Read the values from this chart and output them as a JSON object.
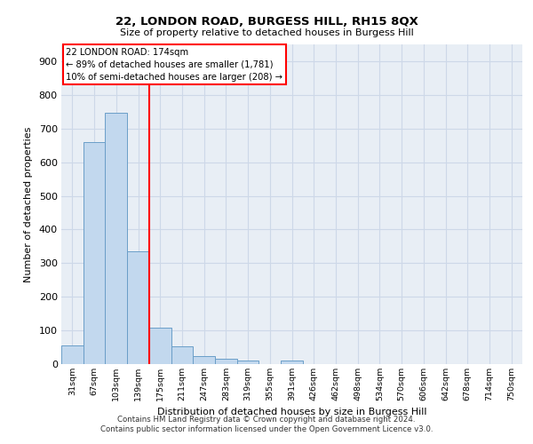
{
  "title": "22, LONDON ROAD, BURGESS HILL, RH15 8QX",
  "subtitle": "Size of property relative to detached houses in Burgess Hill",
  "xlabel": "Distribution of detached houses by size in Burgess Hill",
  "ylabel": "Number of detached properties",
  "footer_line1": "Contains HM Land Registry data © Crown copyright and database right 2024.",
  "footer_line2": "Contains public sector information licensed under the Open Government Licence v3.0.",
  "categories": [
    "31sqm",
    "67sqm",
    "103sqm",
    "139sqm",
    "175sqm",
    "211sqm",
    "247sqm",
    "283sqm",
    "319sqm",
    "355sqm",
    "391sqm",
    "426sqm",
    "462sqm",
    "498sqm",
    "534sqm",
    "570sqm",
    "606sqm",
    "642sqm",
    "678sqm",
    "714sqm",
    "750sqm"
  ],
  "values": [
    55,
    660,
    748,
    335,
    108,
    52,
    25,
    15,
    10,
    0,
    10,
    0,
    0,
    0,
    0,
    0,
    0,
    0,
    0,
    0,
    0
  ],
  "bar_color": "#c2d8ee",
  "bar_edge_color": "#6a9ec8",
  "annotation_text_line1": "22 LONDON ROAD: 174sqm",
  "annotation_text_line2": "← 89% of detached houses are smaller (1,781)",
  "annotation_text_line3": "10% of semi-detached houses are larger (208) →",
  "annotation_box_color": "red",
  "ylim": [
    0,
    950
  ],
  "yticks": [
    0,
    100,
    200,
    300,
    400,
    500,
    600,
    700,
    800,
    900
  ],
  "grid_color": "#cdd8e8",
  "background_color": "#e8eef5"
}
